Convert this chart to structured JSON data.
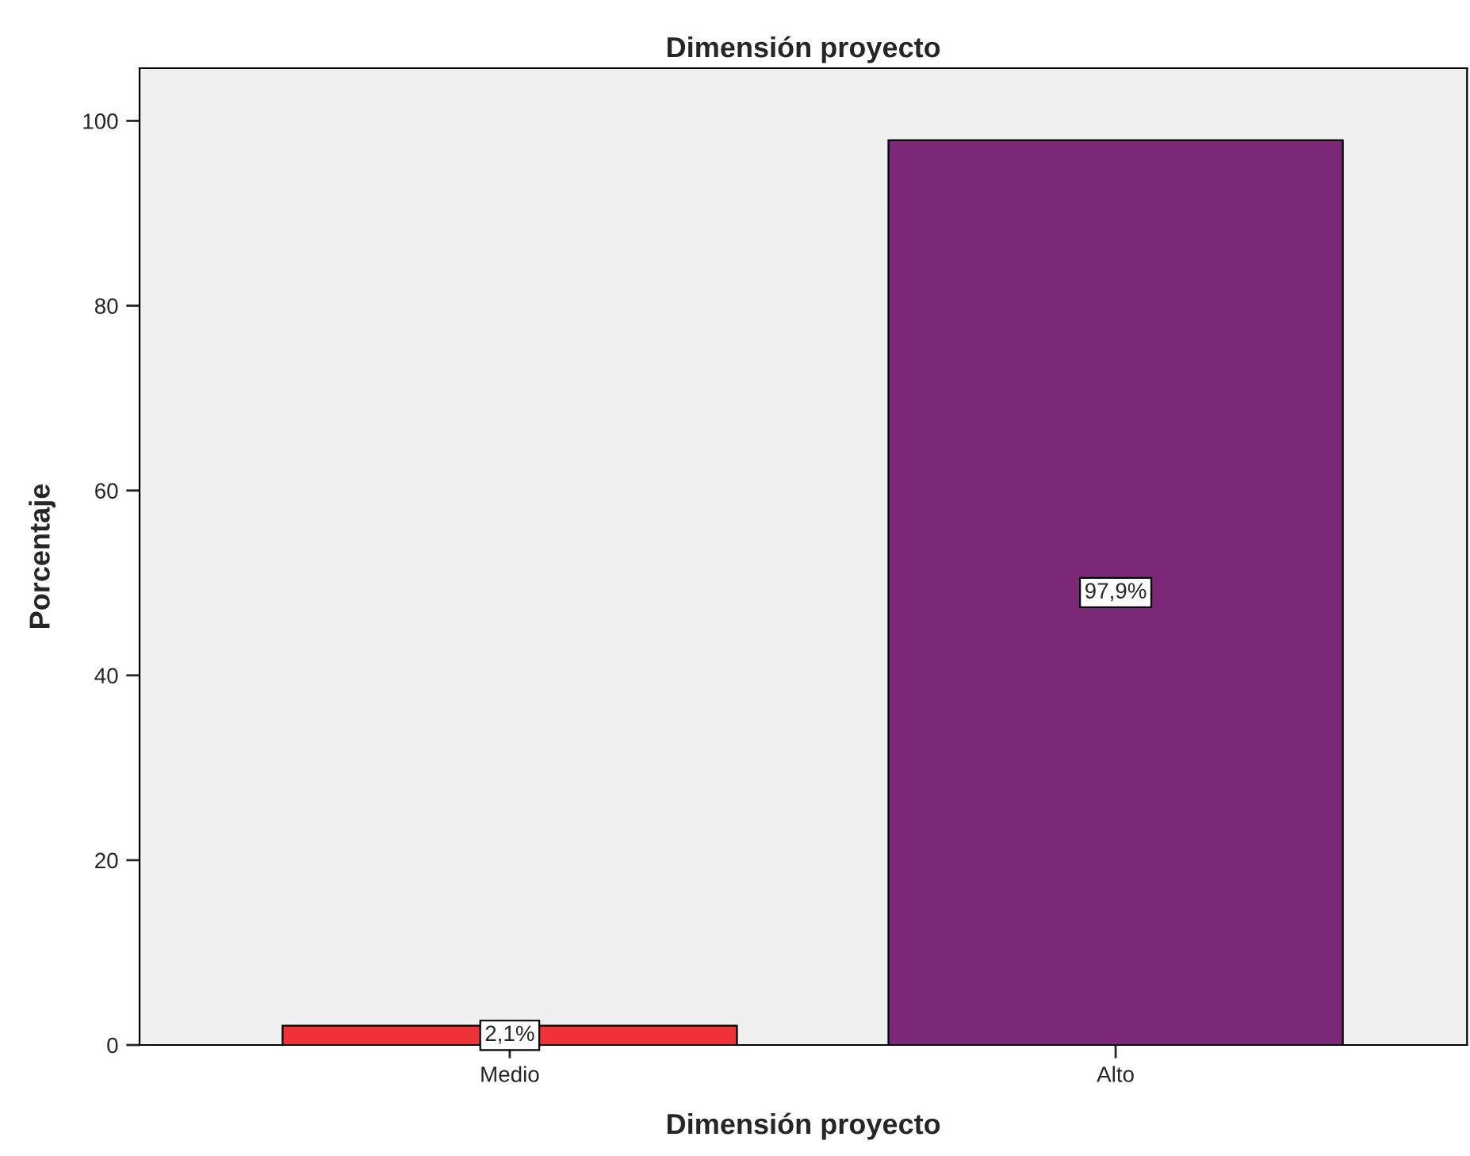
{
  "chart_data": {
    "type": "bar",
    "title": "Dimensión proyecto",
    "xlabel": "Dimensión proyecto",
    "ylabel": "Porcentaje",
    "categories": [
      "Medio",
      "Alto"
    ],
    "values": [
      2.1,
      97.9
    ],
    "colors": [
      "#ee3237",
      "#7b2877"
    ],
    "value_labels": [
      "2,1%",
      "97,9%"
    ],
    "ylim": [
      0,
      105.7
    ],
    "yticks": [
      0,
      20,
      40,
      60,
      80,
      100
    ],
    "grid": false,
    "legend": false
  }
}
